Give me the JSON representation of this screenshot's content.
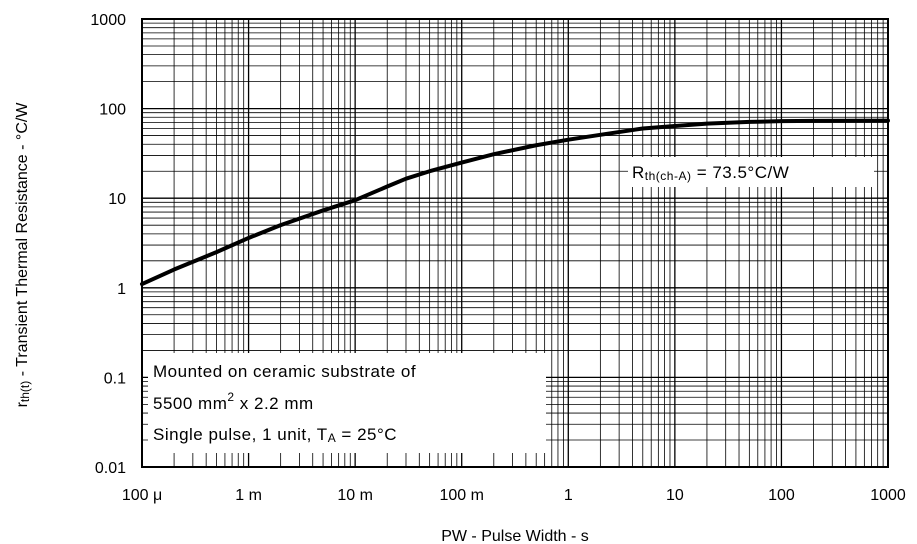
{
  "chart_data": {
    "type": "line",
    "xlabel": "PW - Pulse Width - s",
    "ylabel_parts": {
      "sym": "r",
      "sub": "th(t)",
      "rest": " - Transient Thermal Resistance - °C/W"
    },
    "x_scale": "log",
    "y_scale": "log",
    "xlim": [
      0.0001,
      1000
    ],
    "ylim": [
      0.01,
      1000
    ],
    "grid": true,
    "x_tick_labels": [
      "100 μ",
      "1 m",
      "10 m",
      "100 m",
      "1",
      "10",
      "100",
      "1000"
    ],
    "y_tick_labels": [
      "0.01",
      "0.1",
      "1",
      "10",
      "100",
      "1000"
    ],
    "series": [
      {
        "x": [
          0.0001,
          0.0002,
          0.0005,
          0.001,
          0.002,
          0.005,
          0.01,
          0.02,
          0.03,
          0.05,
          0.1,
          0.2,
          0.5,
          1,
          2,
          5,
          10,
          20,
          50,
          100,
          200,
          500,
          1000
        ],
        "y": [
          1.1,
          1.6,
          2.5,
          3.6,
          5.0,
          7.3,
          9.5,
          13.5,
          16.5,
          20.0,
          25.0,
          31.0,
          39.0,
          45.0,
          51.0,
          60.0,
          64.0,
          68.0,
          71.0,
          72.5,
          73.0,
          73.3,
          73.5
        ]
      }
    ],
    "annotations": {
      "rth": {
        "sym": "R",
        "sub": "th(ch-A)",
        "rest": " = 73.5°C/W"
      },
      "conditions": [
        "Mounted on ceramic substrate of",
        {
          "pre": "5500 mm",
          "sup": "2",
          "post": " x 2.2 mm"
        },
        {
          "pre": "Single pulse, 1 unit, T",
          "sub": "A",
          "post": " = 25°C"
        }
      ]
    }
  }
}
